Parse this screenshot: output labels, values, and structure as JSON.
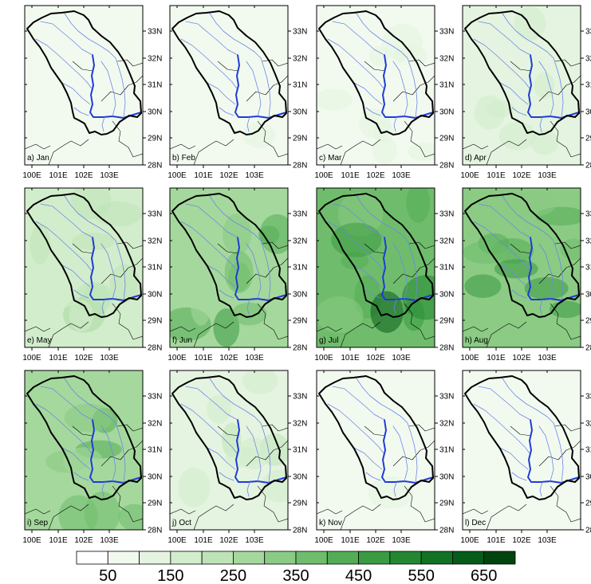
{
  "panels": [
    {
      "label": "a) Jan",
      "level": 0.1
    },
    {
      "label": "b) Feb",
      "level": 0.12
    },
    {
      "label": "c) Mar",
      "level": 0.18
    },
    {
      "label": "d) Apr",
      "level": 0.28
    },
    {
      "label": "e) May",
      "level": 0.45
    },
    {
      "label": "f) Jun",
      "level": 0.72
    },
    {
      "label": "g) Jul",
      "level": 0.95
    },
    {
      "label": "h) Aug",
      "level": 0.85
    },
    {
      "label": "i) Sep",
      "level": 0.65
    },
    {
      "label": "j) Oct",
      "level": 0.32
    },
    {
      "label": "k) Nov",
      "level": 0.14
    },
    {
      "label": "l) Dec",
      "level": 0.1
    }
  ],
  "lat_ticks": [
    "28N",
    "29N",
    "30N",
    "31N",
    "32N",
    "33N"
  ],
  "lon_ticks": [
    "100E",
    "101E",
    "102E",
    "103E"
  ],
  "colorbar": {
    "labels": [
      "50",
      "150",
      "250",
      "350",
      "450",
      "550",
      "650"
    ],
    "colors": [
      "#ffffff",
      "#f2faf0",
      "#e4f4e0",
      "#d2edcc",
      "#bde3b6",
      "#a5d89d",
      "#8bcb84",
      "#6fbd6c",
      "#53ad56",
      "#3a9b43",
      "#238732",
      "#127224",
      "#065c19",
      "#00440f"
    ]
  },
  "colors": {
    "basin_outline": "#000000",
    "main_river": "#1f3bd6",
    "tributary": "#6f86e6",
    "province_border": "#000000"
  }
}
